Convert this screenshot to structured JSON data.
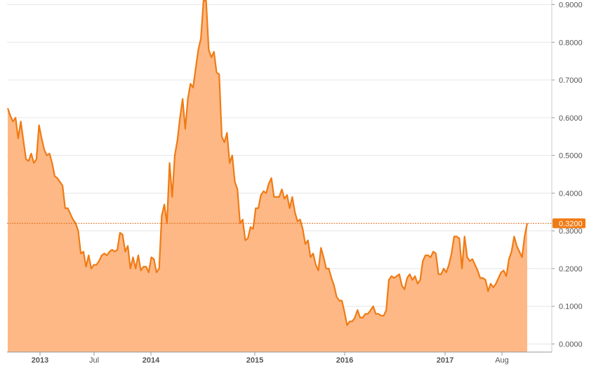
{
  "chart_data": {
    "type": "area",
    "x_tick_labels": [
      "2013",
      "Jul",
      "2014",
      "2015",
      "2016",
      "2017",
      "Aug"
    ],
    "y_ticks": [
      0.0,
      0.1,
      0.2,
      0.3,
      0.4,
      0.5,
      0.6,
      0.7,
      0.8,
      0.9
    ],
    "y_tick_labels": [
      "0.0000",
      "0.1000",
      "0.2000",
      "0.3000",
      "0.4000",
      "0.5000",
      "0.6000",
      "0.7000",
      "0.8000",
      "0.9000"
    ],
    "ylim": [
      -0.02,
      0.91
    ],
    "grid": true,
    "current_value": 0.32,
    "current_value_label": "0.3200",
    "colors": {
      "line": "#f07b14",
      "area": "#fdb886",
      "grid": "#e6e6e6",
      "axis_text": "#555555",
      "current_line": "#e07020",
      "current_label_bg": "#f07b14",
      "current_label_text": "#ffffff"
    },
    "series": [
      {
        "values": [
          0.625,
          0.605,
          0.59,
          0.6,
          0.545,
          0.59,
          0.54,
          0.49,
          0.485,
          0.505,
          0.48,
          0.49,
          0.58,
          0.545,
          0.515,
          0.5,
          0.505,
          0.48,
          0.445,
          0.44,
          0.43,
          0.42,
          0.36,
          0.36,
          0.345,
          0.33,
          0.32,
          0.3,
          0.24,
          0.245,
          0.205,
          0.235,
          0.2,
          0.21,
          0.21,
          0.22,
          0.235,
          0.24,
          0.235,
          0.245,
          0.25,
          0.245,
          0.25,
          0.295,
          0.29,
          0.245,
          0.26,
          0.2,
          0.23,
          0.2,
          0.235,
          0.195,
          0.205,
          0.205,
          0.19,
          0.23,
          0.225,
          0.19,
          0.2,
          0.34,
          0.37,
          0.32,
          0.48,
          0.39,
          0.5,
          0.54,
          0.6,
          0.65,
          0.57,
          0.65,
          0.69,
          0.68,
          0.73,
          0.78,
          0.81,
          0.91,
          0.91,
          0.78,
          0.76,
          0.775,
          0.72,
          0.715,
          0.55,
          0.535,
          0.56,
          0.48,
          0.5,
          0.43,
          0.41,
          0.32,
          0.33,
          0.275,
          0.28,
          0.31,
          0.305,
          0.36,
          0.36,
          0.395,
          0.405,
          0.4,
          0.425,
          0.44,
          0.39,
          0.39,
          0.39,
          0.41,
          0.385,
          0.395,
          0.36,
          0.39,
          0.35,
          0.325,
          0.33,
          0.305,
          0.265,
          0.275,
          0.23,
          0.24,
          0.21,
          0.195,
          0.255,
          0.23,
          0.2,
          0.2,
          0.175,
          0.155,
          0.125,
          0.115,
          0.115,
          0.085,
          0.05,
          0.06,
          0.06,
          0.07,
          0.09,
          0.07,
          0.07,
          0.08,
          0.08,
          0.09,
          0.1,
          0.08,
          0.08,
          0.075,
          0.075,
          0.09,
          0.17,
          0.18,
          0.175,
          0.18,
          0.185,
          0.155,
          0.145,
          0.175,
          0.185,
          0.17,
          0.18,
          0.16,
          0.17,
          0.22,
          0.235,
          0.235,
          0.23,
          0.245,
          0.24,
          0.185,
          0.185,
          0.2,
          0.19,
          0.21,
          0.24,
          0.285,
          0.285,
          0.28,
          0.2,
          0.285,
          0.23,
          0.22,
          0.225,
          0.21,
          0.195,
          0.175,
          0.175,
          0.17,
          0.14,
          0.16,
          0.15,
          0.16,
          0.175,
          0.19,
          0.195,
          0.18,
          0.225,
          0.245,
          0.285,
          0.26,
          0.245,
          0.23,
          0.285,
          0.32
        ]
      }
    ]
  }
}
